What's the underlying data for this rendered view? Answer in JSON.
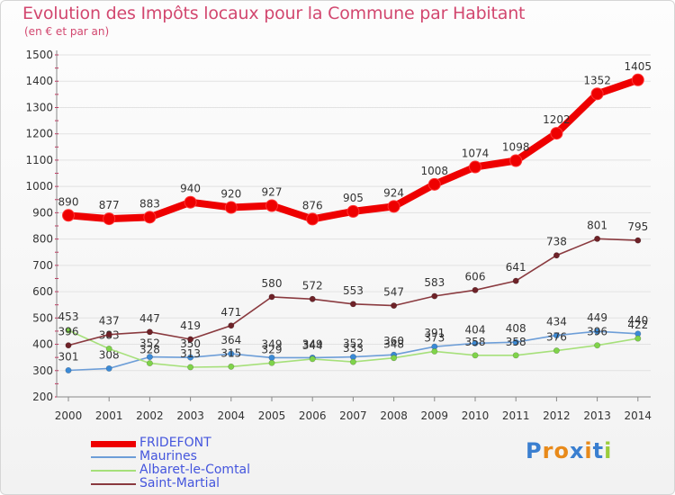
{
  "header": {
    "title": "Evolution des Impôts locaux pour la Commune par Habitant",
    "subtitle": "(en € et par an)"
  },
  "colors": {
    "text_title": "#d2476f",
    "grid": "#e2e2e2",
    "axis": "#888888",
    "axis_tick_marks": "#cc2255",
    "legend_text": "#4455dd"
  },
  "chart_data": {
    "type": "line",
    "x": [
      2000,
      2001,
      2002,
      2003,
      2004,
      2005,
      2006,
      2007,
      2008,
      2009,
      2010,
      2011,
      2012,
      2013,
      2014
    ],
    "ylim": [
      200,
      1500
    ],
    "yticks": [
      200,
      300,
      400,
      500,
      600,
      700,
      800,
      900,
      1000,
      1100,
      1200,
      1300,
      1400,
      1500
    ],
    "grid": true,
    "legend_position": "bottom-left",
    "series": [
      {
        "name": "FRIDEFONT",
        "color": "#ee0000",
        "marker_color": "#ee0000",
        "emphasis": true,
        "values": [
          890,
          877,
          883,
          940,
          920,
          927,
          876,
          905,
          924,
          1008,
          1074,
          1098,
          1202,
          1352,
          1405
        ],
        "labels": [
          "890",
          "877",
          "883",
          "940",
          "920",
          "927",
          "876",
          "905",
          "924",
          "1008",
          "1074",
          "1098",
          "1202",
          "1352",
          "1405"
        ]
      },
      {
        "name": "Maurines",
        "color": "#6d9ed8",
        "marker_color": "#3b8ad6",
        "emphasis": false,
        "values": [
          301,
          308,
          352,
          350,
          364,
          349,
          349,
          352,
          360,
          391,
          404,
          408,
          434,
          449,
          440
        ],
        "labels": [
          "301",
          "308",
          "352",
          "350",
          "364",
          "349",
          "349",
          "352",
          "360",
          "391",
          "404",
          "408",
          "434",
          "449",
          "440"
        ]
      },
      {
        "name": "Albaret-le-Comtal",
        "color": "#a6e07a",
        "marker_color": "#7fd34a",
        "emphasis": false,
        "values": [
          453,
          383,
          328,
          313,
          315,
          329,
          344,
          333,
          348,
          373,
          358,
          358,
          376,
          396,
          422
        ],
        "labels": [
          "453",
          "383",
          "328",
          "313",
          "315",
          "329",
          "344",
          "333",
          "348",
          "373",
          "358",
          "358",
          "376",
          "396",
          "422"
        ]
      },
      {
        "name": "Saint-Martial",
        "color": "#8a3a3f",
        "marker_color": "#6e2228",
        "emphasis": false,
        "values": [
          396,
          437,
          447,
          419,
          471,
          580,
          572,
          553,
          547,
          583,
          606,
          641,
          738,
          801,
          795
        ],
        "labels": [
          "396",
          "437",
          "447",
          "419",
          "471",
          "580",
          "572",
          "553",
          "547",
          "583",
          "606",
          "641",
          "738",
          "801",
          "795"
        ]
      }
    ]
  },
  "legend": {
    "items": [
      {
        "label": "FRIDEFONT",
        "color": "#ee0000"
      },
      {
        "label": "Maurines",
        "color": "#6d9ed8"
      },
      {
        "label": "Albaret-le-Comtal",
        "color": "#a6e07a"
      },
      {
        "label": "Saint-Martial",
        "color": "#8a3a3f"
      }
    ]
  },
  "logo": {
    "text": "Proxiti",
    "letter_colors": [
      "#3a7fd0",
      "#e88a1a",
      "#e88a1a",
      "#3a7fd0",
      "#e88a1a",
      "#3a7fd0",
      "#9ccd3c"
    ]
  }
}
